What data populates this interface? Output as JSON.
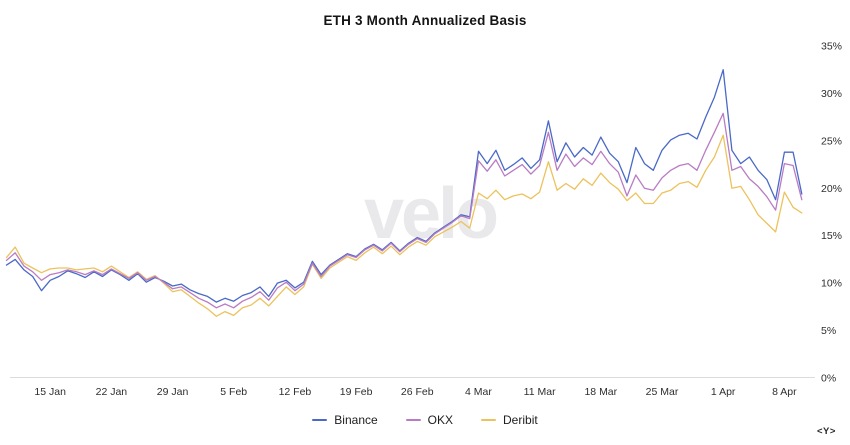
{
  "chart": {
    "title": "ETH 3 Month Annualized Basis"
  },
  "watermark": "velo",
  "axis_toggle": "<Y>",
  "chart_data": {
    "type": "line",
    "title": "ETH 3 Month Annualized Basis",
    "ylabel": "",
    "xlabel": "",
    "ylim": [
      0,
      35
    ],
    "y_ticks": [
      0,
      5,
      10,
      15,
      20,
      25,
      30,
      35
    ],
    "y_tick_suffix": "%",
    "y_axis_side": "right",
    "grid": "x-axis baseline only",
    "legend_position": "bottom-center",
    "x_unit": "day (daily points, 10 Jan – 10 Apr)",
    "x_tick_labels": [
      {
        "label": "15 Jan",
        "index": 5
      },
      {
        "label": "22 Jan",
        "index": 12
      },
      {
        "label": "29 Jan",
        "index": 19
      },
      {
        "label": "5 Feb",
        "index": 26
      },
      {
        "label": "12 Feb",
        "index": 33
      },
      {
        "label": "19 Feb",
        "index": 40
      },
      {
        "label": "26 Feb",
        "index": 47
      },
      {
        "label": "4 Mar",
        "index": 54
      },
      {
        "label": "11 Mar",
        "index": 61
      },
      {
        "label": "18 Mar",
        "index": 68
      },
      {
        "label": "25 Mar",
        "index": 75
      },
      {
        "label": "1 Apr",
        "index": 82
      },
      {
        "label": "8 Apr",
        "index": 89
      }
    ],
    "series": [
      {
        "name": "Binance",
        "color": "#4a69c6",
        "values": [
          11.9,
          12.5,
          11.4,
          10.7,
          9.2,
          10.3,
          10.7,
          11.3,
          11.0,
          10.6,
          11.2,
          10.7,
          11.4,
          10.9,
          10.3,
          11.0,
          10.1,
          10.6,
          10.2,
          9.7,
          9.9,
          9.3,
          8.9,
          8.6,
          8.0,
          8.4,
          8.1,
          8.7,
          9.0,
          9.6,
          8.6,
          10.0,
          10.3,
          9.5,
          10.1,
          12.3,
          10.9,
          11.9,
          12.5,
          13.1,
          12.8,
          13.6,
          14.1,
          13.5,
          14.3,
          13.4,
          14.2,
          14.8,
          14.4,
          15.3,
          15.9,
          16.5,
          17.2,
          17.0,
          23.9,
          22.6,
          24.0,
          21.9,
          22.5,
          23.2,
          22.1,
          23.0,
          27.1,
          22.8,
          24.8,
          23.3,
          24.3,
          23.5,
          25.4,
          23.7,
          22.8,
          20.6,
          24.3,
          22.6,
          21.9,
          24.0,
          25.1,
          25.6,
          25.8,
          25.2,
          27.5,
          29.6,
          32.5,
          24.0,
          22.6,
          23.3,
          21.9,
          20.9,
          18.8,
          23.8,
          23.8,
          19.4
        ]
      },
      {
        "name": "OKX",
        "color": "#b97cc4",
        "values": [
          12.4,
          13.2,
          11.8,
          11.2,
          10.3,
          10.9,
          11.1,
          11.4,
          11.2,
          10.9,
          11.3,
          10.9,
          11.5,
          11.0,
          10.5,
          11.1,
          10.3,
          10.7,
          10.1,
          9.4,
          9.6,
          9.0,
          8.4,
          8.0,
          7.4,
          7.8,
          7.4,
          8.1,
          8.5,
          9.1,
          8.2,
          9.5,
          10.1,
          9.2,
          9.9,
          12.1,
          10.7,
          11.8,
          12.4,
          13.0,
          12.7,
          13.5,
          14.0,
          13.4,
          14.2,
          13.3,
          14.1,
          14.7,
          14.3,
          15.2,
          15.8,
          16.4,
          17.1,
          16.8,
          22.9,
          21.8,
          23.0,
          21.3,
          21.9,
          22.5,
          21.5,
          22.4,
          25.9,
          21.9,
          23.6,
          22.3,
          23.2,
          22.5,
          23.9,
          22.6,
          21.7,
          19.2,
          21.4,
          20.0,
          19.8,
          21.1,
          21.9,
          22.4,
          22.6,
          21.9,
          24.0,
          25.9,
          27.9,
          21.9,
          22.3,
          21.0,
          20.2,
          19.1,
          17.7,
          22.6,
          22.4,
          18.8
        ]
      },
      {
        "name": "Deribit",
        "color": "#ecc25d",
        "values": [
          12.7,
          13.8,
          12.1,
          11.6,
          11.1,
          11.5,
          11.6,
          11.6,
          11.4,
          11.5,
          11.6,
          11.2,
          11.8,
          11.2,
          10.6,
          11.2,
          10.4,
          10.8,
          10.0,
          9.1,
          9.3,
          8.6,
          7.9,
          7.3,
          6.5,
          7.0,
          6.6,
          7.4,
          7.7,
          8.4,
          7.6,
          8.6,
          9.6,
          8.8,
          9.6,
          12.0,
          10.5,
          11.6,
          12.2,
          12.8,
          12.4,
          13.2,
          13.8,
          13.1,
          13.9,
          13.0,
          13.8,
          14.4,
          14.0,
          14.9,
          15.4,
          15.9,
          16.5,
          15.8,
          19.5,
          18.9,
          19.8,
          18.8,
          19.2,
          19.4,
          18.9,
          19.6,
          22.8,
          19.8,
          20.5,
          19.9,
          21.0,
          20.3,
          21.6,
          20.6,
          19.9,
          18.7,
          19.5,
          18.4,
          18.4,
          19.5,
          19.8,
          20.5,
          20.7,
          20.1,
          21.9,
          23.3,
          25.6,
          20.0,
          20.2,
          18.8,
          17.2,
          16.3,
          15.4,
          19.6,
          18.0,
          17.4
        ]
      }
    ]
  }
}
